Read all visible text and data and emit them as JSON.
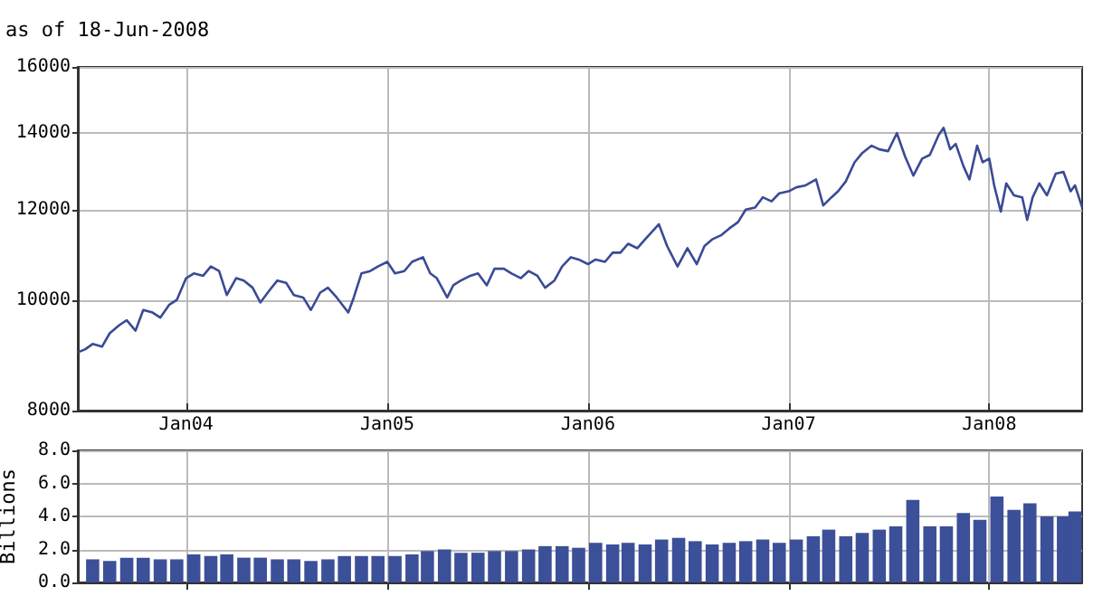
{
  "chart_data": [
    {
      "type": "line",
      "subtitle": "as of 18-Jun-2008",
      "log": "y",
      "grid": true,
      "marker": "none",
      "line_style": "solid",
      "xlim": [
        "2003-06-18",
        "2008-06-18"
      ],
      "xticks": [
        {
          "value": "2004-01-01",
          "label": "Jan04"
        },
        {
          "value": "2005-01-01",
          "label": "Jan05"
        },
        {
          "value": "2006-01-01",
          "label": "Jan06"
        },
        {
          "value": "2007-01-01",
          "label": "Jan07"
        },
        {
          "value": "2008-01-01",
          "label": "Jan08"
        }
      ],
      "ylim": [
        8000,
        16000
      ],
      "yticks": [
        8000,
        10000,
        12000,
        14000,
        16000
      ],
      "series": [
        {
          "color": "#3a4a95",
          "x": [
            "2003-06-18",
            "2003-07-01",
            "2003-07-15",
            "2003-08-01",
            "2003-08-15",
            "2003-09-01",
            "2003-09-15",
            "2003-10-01",
            "2003-10-15",
            "2003-11-01",
            "2003-11-15",
            "2003-12-01",
            "2003-12-15",
            "2004-01-01",
            "2004-01-15",
            "2004-02-01",
            "2004-02-15",
            "2004-03-01",
            "2004-03-15",
            "2004-04-01",
            "2004-04-15",
            "2004-05-01",
            "2004-05-15",
            "2004-06-01",
            "2004-06-15",
            "2004-07-01",
            "2004-07-15",
            "2004-08-01",
            "2004-08-15",
            "2004-09-01",
            "2004-09-15",
            "2004-10-01",
            "2004-10-22",
            "2004-11-01",
            "2004-11-15",
            "2004-12-01",
            "2004-12-15",
            "2005-01-01",
            "2005-01-15",
            "2005-02-01",
            "2005-02-15",
            "2005-03-07",
            "2005-03-20",
            "2005-04-01",
            "2005-04-20",
            "2005-05-01",
            "2005-05-15",
            "2005-06-01",
            "2005-06-15",
            "2005-07-01",
            "2005-07-15",
            "2005-08-01",
            "2005-08-15",
            "2005-09-01",
            "2005-09-15",
            "2005-10-01",
            "2005-10-15",
            "2005-11-01",
            "2005-11-15",
            "2005-12-01",
            "2005-12-15",
            "2006-01-01",
            "2006-01-15",
            "2006-02-01",
            "2006-02-15",
            "2006-03-01",
            "2006-03-15",
            "2006-04-01",
            "2006-04-15",
            "2006-05-10",
            "2006-05-25",
            "2006-06-13",
            "2006-07-01",
            "2006-07-18",
            "2006-08-01",
            "2006-08-15",
            "2006-09-01",
            "2006-09-15",
            "2006-10-01",
            "2006-10-15",
            "2006-11-01",
            "2006-11-15",
            "2006-12-01",
            "2006-12-15",
            "2007-01-01",
            "2007-01-15",
            "2007-02-01",
            "2007-02-20",
            "2007-03-05",
            "2007-03-20",
            "2007-04-01",
            "2007-04-15",
            "2007-05-01",
            "2007-05-15",
            "2007-06-01",
            "2007-06-15",
            "2007-07-01",
            "2007-07-17",
            "2007-08-01",
            "2007-08-16",
            "2007-09-01",
            "2007-09-15",
            "2007-10-01",
            "2007-10-10",
            "2007-10-22",
            "2007-11-01",
            "2007-11-15",
            "2007-11-26",
            "2007-12-10",
            "2007-12-20",
            "2008-01-01",
            "2008-01-10",
            "2008-01-22",
            "2008-02-01",
            "2008-02-15",
            "2008-03-01",
            "2008-03-10",
            "2008-03-20",
            "2008-04-01",
            "2008-04-15",
            "2008-05-01",
            "2008-05-15",
            "2008-05-28",
            "2008-06-05",
            "2008-06-18"
          ],
          "values": [
            9000,
            9050,
            9150,
            9100,
            9350,
            9500,
            9600,
            9400,
            9800,
            9750,
            9650,
            9900,
            10000,
            10450,
            10550,
            10500,
            10700,
            10600,
            10100,
            10450,
            10400,
            10250,
            9950,
            10200,
            10400,
            10350,
            10100,
            10050,
            9800,
            10150,
            10250,
            10050,
            9750,
            10050,
            10550,
            10600,
            10700,
            10800,
            10550,
            10600,
            10800,
            10900,
            10550,
            10450,
            10050,
            10300,
            10400,
            10500,
            10550,
            10300,
            10650,
            10650,
            10550,
            10450,
            10600,
            10500,
            10250,
            10400,
            10700,
            10900,
            10850,
            10750,
            10850,
            10800,
            11000,
            11000,
            11200,
            11100,
            11300,
            11650,
            11150,
            10700,
            11100,
            10750,
            11150,
            11300,
            11400,
            11550,
            11700,
            12000,
            12050,
            12300,
            12200,
            12400,
            12450,
            12550,
            12600,
            12750,
            12100,
            12300,
            12450,
            12700,
            13200,
            13450,
            13650,
            13550,
            13500,
            14000,
            13350,
            12850,
            13300,
            13400,
            13950,
            14150,
            13550,
            13700,
            13100,
            12750,
            13650,
            13200,
            13300,
            12600,
            11950,
            12650,
            12350,
            12300,
            11750,
            12300,
            12650,
            12350,
            12900,
            12950,
            12450,
            12600,
            12050
          ]
        }
      ]
    },
    {
      "type": "bar",
      "ylabel": "Billions",
      "grid": true,
      "tick_labels": "y",
      "xlim": [
        "2003-06-18",
        "2008-06-18"
      ],
      "xticks": [
        {
          "value": "2004-01-01",
          "label": null
        },
        {
          "value": "2005-01-01",
          "label": null
        },
        {
          "value": "2006-01-01",
          "label": null
        },
        {
          "value": "2007-01-01",
          "label": null
        },
        {
          "value": "2008-01-01",
          "label": null
        }
      ],
      "ylim": [
        0,
        8
      ],
      "yticks": [
        {
          "value": 0,
          "label": "0.0"
        },
        {
          "value": 2,
          "label": "2.0"
        },
        {
          "value": 4,
          "label": "4.0"
        },
        {
          "value": 6,
          "label": "6.0"
        },
        {
          "value": 8,
          "label": "8.0"
        }
      ],
      "series": [
        {
          "color": "#3c4f99",
          "x": [
            "2003-07-15",
            "2003-08-15",
            "2003-09-15",
            "2003-10-15",
            "2003-11-15",
            "2003-12-15",
            "2004-01-15",
            "2004-02-15",
            "2004-03-15",
            "2004-04-15",
            "2004-05-15",
            "2004-06-15",
            "2004-07-15",
            "2004-08-15",
            "2004-09-15",
            "2004-10-15",
            "2004-11-15",
            "2004-12-15",
            "2005-01-15",
            "2005-02-15",
            "2005-03-15",
            "2005-04-15",
            "2005-05-15",
            "2005-06-15",
            "2005-07-15",
            "2005-08-15",
            "2005-09-15",
            "2005-10-15",
            "2005-11-15",
            "2005-12-15",
            "2006-01-15",
            "2006-02-15",
            "2006-03-15",
            "2006-04-15",
            "2006-05-15",
            "2006-06-15",
            "2006-07-15",
            "2006-08-15",
            "2006-09-15",
            "2006-10-15",
            "2006-11-15",
            "2006-12-15",
            "2007-01-15",
            "2007-02-15",
            "2007-03-15",
            "2007-04-15",
            "2007-05-15",
            "2007-06-15",
            "2007-07-15",
            "2007-08-15",
            "2007-09-15",
            "2007-10-15",
            "2007-11-15",
            "2007-12-15",
            "2008-01-15",
            "2008-02-15",
            "2008-03-15",
            "2008-04-15",
            "2008-05-15",
            "2008-06-05"
          ],
          "values": [
            1.4,
            1.3,
            1.5,
            1.5,
            1.4,
            1.4,
            1.7,
            1.6,
            1.7,
            1.5,
            1.5,
            1.4,
            1.4,
            1.3,
            1.4,
            1.6,
            1.6,
            1.6,
            1.6,
            1.7,
            1.9,
            2.0,
            1.8,
            1.8,
            1.9,
            1.9,
            2.0,
            2.2,
            2.2,
            2.1,
            2.4,
            2.3,
            2.4,
            2.3,
            2.6,
            2.7,
            2.5,
            2.3,
            2.4,
            2.5,
            2.6,
            2.4,
            2.6,
            2.8,
            3.2,
            2.8,
            3.0,
            3.2,
            3.4,
            5.0,
            3.4,
            3.4,
            4.2,
            3.8,
            5.2,
            4.4,
            4.8,
            4.0,
            4.0,
            4.3
          ]
        }
      ]
    }
  ]
}
